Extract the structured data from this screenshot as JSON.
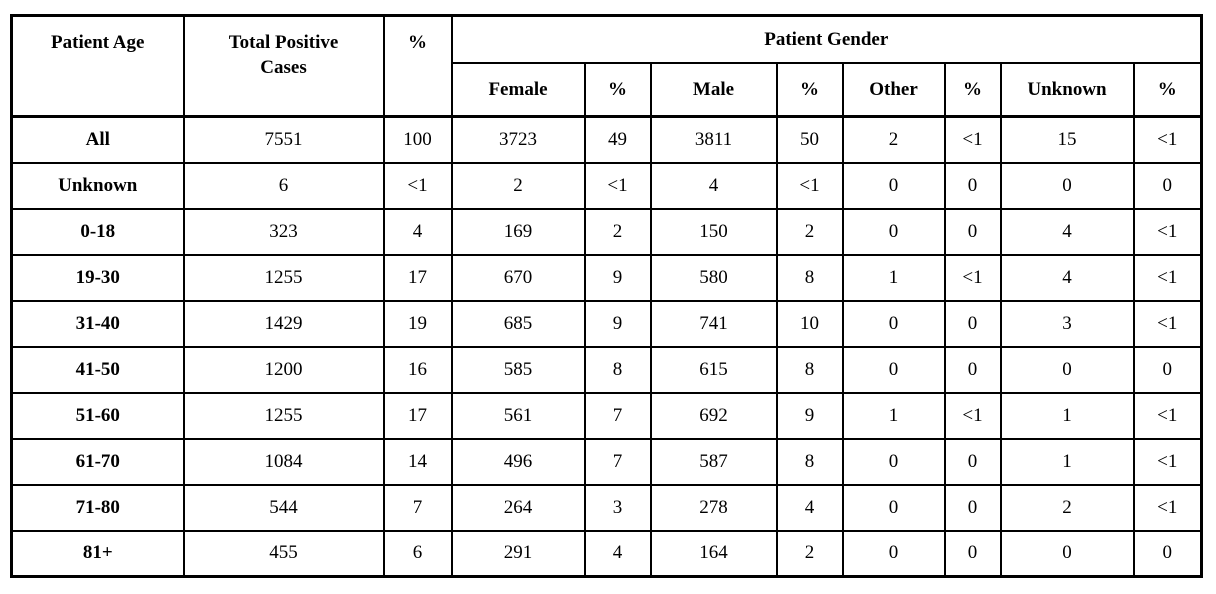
{
  "page": {
    "background_color": "#ffffff",
    "text_color": "#000000",
    "border_color": "#000000"
  },
  "table": {
    "header": {
      "patient_age": "Patient Age",
      "total_positive_cases": "Total Positive Cases",
      "total_percent": "%",
      "patient_gender": "Patient Gender",
      "gender_columns": [
        "Female",
        "%",
        "Male",
        "%",
        "Other",
        "%",
        "Unknown",
        "%"
      ]
    },
    "rows": [
      [
        "All",
        "7551",
        "100",
        "3723",
        "49",
        "3811",
        "50",
        "2",
        "<1",
        "15",
        "<1"
      ],
      [
        "Unknown",
        "6",
        "<1",
        "2",
        "<1",
        "4",
        "<1",
        "0",
        "0",
        "0",
        "0"
      ],
      [
        "0-18",
        "323",
        "4",
        "169",
        "2",
        "150",
        "2",
        "0",
        "0",
        "4",
        "<1"
      ],
      [
        "19-30",
        "1255",
        "17",
        "670",
        "9",
        "580",
        "8",
        "1",
        "<1",
        "4",
        "<1"
      ],
      [
        "31-40",
        "1429",
        "19",
        "685",
        "9",
        "741",
        "10",
        "0",
        "0",
        "3",
        "<1"
      ],
      [
        "41-50",
        "1200",
        "16",
        "585",
        "8",
        "615",
        "8",
        "0",
        "0",
        "0",
        "0"
      ],
      [
        "51-60",
        "1255",
        "17",
        "561",
        "7",
        "692",
        "9",
        "1",
        "<1",
        "1",
        "<1"
      ],
      [
        "61-70",
        "1084",
        "14",
        "496",
        "7",
        "587",
        "8",
        "0",
        "0",
        "1",
        "<1"
      ],
      [
        "71-80",
        "544",
        "7",
        "264",
        "3",
        "278",
        "4",
        "0",
        "0",
        "2",
        "<1"
      ],
      [
        "81+",
        "455",
        "6",
        "291",
        "4",
        "164",
        "2",
        "0",
        "0",
        "0",
        "0"
      ]
    ]
  }
}
